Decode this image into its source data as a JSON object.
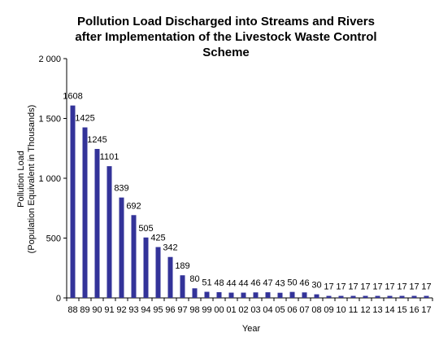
{
  "chart_data": {
    "type": "bar",
    "title_lines": [
      "Pollution Load Discharged into Streams and Rivers",
      "after Implementation of the Livestock Waste Control",
      "Scheme"
    ],
    "xlabel": "Year",
    "ylabel_lines": [
      "Pollution Load",
      "(Population Equivalent in Thousands)"
    ],
    "categories": [
      "88",
      "89",
      "90",
      "91",
      "92",
      "93",
      "94",
      "95",
      "96",
      "97",
      "98",
      "99",
      "00",
      "01",
      "02",
      "03",
      "04",
      "05",
      "06",
      "07",
      "08",
      "09",
      "10",
      "11",
      "12",
      "13",
      "14",
      "15",
      "16",
      "17"
    ],
    "values": [
      1608,
      1425,
      1245,
      1101,
      839,
      692,
      505,
      425,
      342,
      189,
      80,
      51,
      48,
      44,
      44,
      46,
      47,
      43,
      50,
      46,
      30,
      17,
      17,
      17,
      17,
      17,
      17,
      17,
      17,
      17
    ],
    "y_tick_labels": [
      "0",
      "500",
      "1 000",
      "1 500",
      "2 000"
    ],
    "y_ticks": [
      0,
      500,
      1000,
      1500,
      2000
    ],
    "ylim": [
      0,
      2000
    ],
    "grid": false,
    "legend": "none",
    "bar_color": "#333399"
  }
}
